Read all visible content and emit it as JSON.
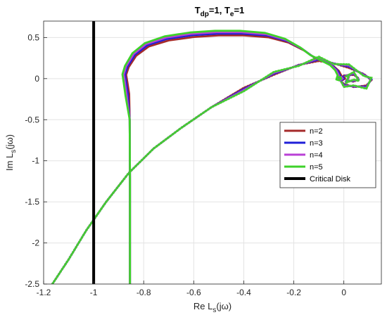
{
  "chart_data": {
    "type": "line",
    "title": "T_dp=1, T_e=1",
    "title_parts": {
      "t1": "T",
      "s1": "dp",
      "v1": "=1, ",
      "t2": "T",
      "s2": "e",
      "v2": "=1"
    },
    "xlabel": "Re L_s(jω)",
    "xlabel_parts": {
      "a": "Re L",
      "sub": "s",
      "b": "(jω)"
    },
    "ylabel": "Im L_s(jω)",
    "ylabel_parts": {
      "a": "Im L",
      "sub": "s",
      "b": "(jω)"
    },
    "xlim": [
      -1.2,
      0.15
    ],
    "ylim": [
      -2.5,
      0.7
    ],
    "xticks": [
      -1.2,
      -1,
      -0.8,
      -0.6,
      -0.4,
      -0.2,
      0
    ],
    "xtick_labels": [
      "-1.2",
      "-1",
      "-0.8",
      "-0.6",
      "-0.4",
      "-0.2",
      "0"
    ],
    "yticks": [
      -2.5,
      -2,
      -1.5,
      -1,
      -0.5,
      0,
      0.5
    ],
    "ytick_labels": [
      "-2.5",
      "-2",
      "-1.5",
      "-1",
      "-0.5",
      "0",
      "0.5"
    ],
    "grid": true,
    "legend_position": "right",
    "series": [
      {
        "name": "n=2",
        "color": "#a52a2a",
        "scale": 0.93,
        "offset": 0.0
      },
      {
        "name": "n=3",
        "color": "#1f1fd8",
        "scale": 0.97,
        "offset": 0.01
      },
      {
        "name": "n=4",
        "color": "#b940d6",
        "scale": 1.0,
        "offset": 0.02
      },
      {
        "name": "n=5",
        "color": "#3ed22a",
        "scale": 1.03,
        "offset": 0.03
      },
      {
        "name": "Critical Disk",
        "color": "#000000",
        "x": -1.0
      }
    ],
    "solid_curve_base": [
      [
        -0.855,
        -2.5
      ],
      [
        -0.855,
        -1.2
      ],
      [
        -0.856,
        -0.5
      ],
      [
        -0.858,
        -0.2
      ],
      [
        -0.865,
        -0.05
      ],
      [
        -0.87,
        0.05
      ],
      [
        -0.86,
        0.15
      ],
      [
        -0.83,
        0.3
      ],
      [
        -0.78,
        0.42
      ],
      [
        -0.7,
        0.5
      ],
      [
        -0.6,
        0.545
      ],
      [
        -0.5,
        0.565
      ],
      [
        -0.4,
        0.565
      ],
      [
        -0.3,
        0.54
      ],
      [
        -0.22,
        0.47
      ],
      [
        -0.16,
        0.37
      ],
      [
        -0.12,
        0.28
      ],
      [
        -0.08,
        0.22
      ],
      [
        -0.04,
        0.16
      ],
      [
        -0.02,
        0.1
      ],
      [
        -0.01,
        0.04
      ],
      [
        -0.015,
        -0.01
      ],
      [
        -0.005,
        -0.02
      ],
      [
        0.005,
        0.0
      ],
      [
        0.0,
        0.02
      ],
      [
        -0.01,
        0.01
      ]
    ],
    "dotted_curve_base": [
      [
        -1.165,
        -2.5
      ],
      [
        -1.1,
        -2.2
      ],
      [
        -1.03,
        -1.85
      ],
      [
        -0.95,
        -1.5
      ],
      [
        -0.86,
        -1.15
      ],
      [
        -0.76,
        -0.85
      ],
      [
        -0.65,
        -0.6
      ],
      [
        -0.53,
        -0.35
      ],
      [
        -0.4,
        -0.12
      ],
      [
        -0.28,
        0.05
      ],
      [
        -0.18,
        0.18
      ],
      [
        -0.1,
        0.23
      ],
      [
        -0.04,
        0.2
      ],
      [
        0.02,
        0.14
      ],
      [
        0.08,
        0.06
      ],
      [
        0.11,
        -0.02
      ],
      [
        0.09,
        -0.09
      ],
      [
        0.04,
        -0.11
      ],
      [
        0.0,
        -0.07
      ],
      [
        -0.02,
        -0.01
      ],
      [
        0.0,
        0.04
      ],
      [
        0.04,
        0.05
      ],
      [
        0.06,
        0.0
      ],
      [
        0.04,
        -0.04
      ],
      [
        0.01,
        -0.02
      ],
      [
        0.02,
        0.01
      ]
    ]
  }
}
